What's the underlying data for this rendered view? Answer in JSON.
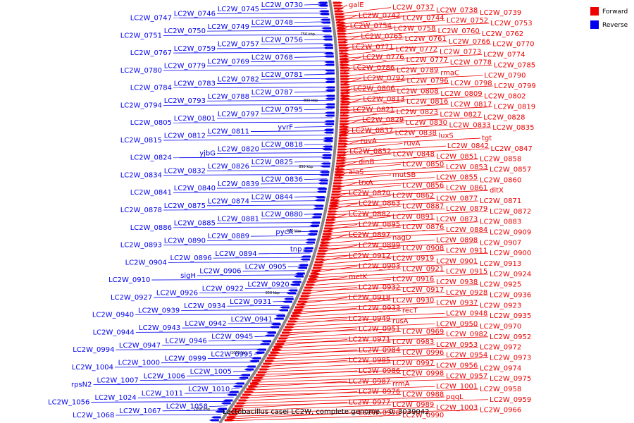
{
  "caption": "Lactobacillus casei LC2W, complete genome. - 0..3039042",
  "legend": [
    {
      "label": "Forward",
      "color": "#ee0000"
    },
    {
      "label": "Reverse",
      "color": "#0000ee"
    }
  ],
  "colors": {
    "forward": "#ee0000",
    "reverse": "#0000ee",
    "backbone": "#888888"
  },
  "kbp_marks": [
    "750 kbp",
    "800 kbp",
    "850 kbp",
    "900 kbp",
    "950 kbp",
    "1000 kbp",
    "1050 kbp"
  ],
  "reverse_labels": [
    "LC2W_0730",
    "LC2W_0745",
    "LC2W_0746",
    "LC2W_0747",
    "LC2W_0748",
    "LC2W_0749",
    "LC2W_0750",
    "LC2W_0751",
    "LC2W_0756",
    "LC2W_0757",
    "LC2W_0759",
    "LC2W_0767",
    "LC2W_0768",
    "LC2W_0769",
    "LC2W_0779",
    "LC2W_0780",
    "LC2W_0781",
    "LC2W_0782",
    "LC2W_0783",
    "LC2W_0784",
    "LC2W_0787",
    "LC2W_0788",
    "LC2W_0793",
    "LC2W_0794",
    "LC2W_0795",
    "LC2W_0797",
    "LC2W_0801",
    "LC2W_0805",
    "yvrF",
    "LC2W_0811",
    "LC2W_0812",
    "LC2W_0815",
    "LC2W_0818",
    "LC2W_0820",
    "yjbG",
    "LC2W_0824",
    "LC2W_0825",
    "LC2W_0826",
    "LC2W_0832",
    "LC2W_0834",
    "LC2W_0836",
    "LC2W_0839",
    "LC2W_0840",
    "LC2W_0841",
    "LC2W_0844",
    "LC2W_0874",
    "LC2W_0875",
    "LC2W_0878",
    "LC2W_0880",
    "LC2W_0881",
    "LC2W_0885",
    "LC2W_0886",
    "pycA",
    "LC2W_0889",
    "LC2W_0890",
    "LC2W_0893",
    "tnp",
    "LC2W_0894",
    "LC2W_0896",
    "LC2W_0904",
    "LC2W_0905",
    "LC2W_0906",
    "sigH",
    "LC2W_0910",
    "LC2W_0920",
    "LC2W_0922",
    "LC2W_0926",
    "LC2W_0927",
    "LC2W_0931",
    "LC2W_0934",
    "LC2W_0939",
    "LC2W_0940",
    "LC2W_0941",
    "LC2W_0942",
    "LC2W_0943",
    "LC2W_0944",
    "LC2W_0945",
    "LC2W_0946",
    "LC2W_0947",
    "LC2W_0994",
    "LC2W_0995",
    "LC2W_0999",
    "LC2W_1000",
    "LC2W_1004",
    "LC2W_1005",
    "LC2W_1006",
    "LC2W_1007",
    "rpsN2",
    "LC2W_1010",
    "LC2W_1011",
    "LC2W_1024",
    "LC2W_1056",
    "LC2W_1058",
    "LC2W_1067",
    "LC2W_1068"
  ],
  "forward_labels": [
    "galE",
    "LC2W_0737",
    "LC2W_0738",
    "LC2W_0739",
    "LC2W_0742",
    "LC2W_0744",
    "LC2W_0752",
    "LC2W_0753",
    "LC2W_0754",
    "LC2W_0758",
    "LC2W_0760",
    "LC2W_0762",
    "LC2W_0765",
    "LC2W_0761",
    "LC2W_0766",
    "LC2W_0770",
    "LC2W_0771",
    "LC2W_0772",
    "LC2W_0773",
    "LC2W_0774",
    "LC2W_0776",
    "LC2W_0777",
    "LC2W_0778",
    "LC2W_0785",
    "LC2W_0786",
    "LC2W_0789",
    "rmaC",
    "LC2W_0790",
    "LC2W_0792",
    "LC2W_0796",
    "LC2W_0798",
    "LC2W_0799",
    "LC2W_0806",
    "LC2W_0808",
    "LC2W_0809",
    "LC2W_0802",
    "LC2W_0813",
    "LC2W_0816",
    "LC2W_0817",
    "LC2W_0819",
    "LC2W_0821",
    "LC2W_0823",
    "LC2W_0827",
    "LC2W_0828",
    "LC2W_0829",
    "LC2W_0830",
    "LC2W_0833",
    "LC2W_0835",
    "LC2W_0837",
    "LC2W_0838",
    "luxS",
    "tgt",
    "ruvA",
    "ruvA",
    "LC2W_0842",
    "LC2W_0847",
    "LC2W_0852",
    "LC2W_0848",
    "LC2W_0851",
    "LC2W_0858",
    "dinB",
    "LC2W_0850",
    "LC2W_0853",
    "LC2W_0857",
    "alaS",
    "mutSB",
    "LC2W_0855",
    "LC2W_0860",
    "trxA",
    "LC2W_0856",
    "LC2W_0861",
    "dltX",
    "LC2W_0870",
    "LC2W_0862",
    "LC2W_0877",
    "LC2W_0871",
    "LC2W_0863",
    "LC2W_0887",
    "LC2W_0879",
    "LC2W_0872",
    "LC2W_0882",
    "LC2W_0891",
    "LC2W_0873",
    "LC2W_0883",
    "LC2W_0895",
    "LC2W_0876",
    "LC2W_0884",
    "LC2W_0909",
    "LC2W_0897",
    "nagD",
    "LC2W_0898",
    "LC2W_0907",
    "LC2W_0899",
    "LC2W_0908",
    "LC2W_0911",
    "LC2W_0900",
    "LC2W_0912",
    "LC2W_0919",
    "LC2W_0901",
    "LC2W_0913",
    "LC2W_0903",
    "LC2W_0921",
    "LC2W_0915",
    "LC2W_0924",
    "metK",
    "LC2W_0916",
    "LC2W_0938",
    "LC2W_0925",
    "LC2W_0932",
    "LC2W_0917",
    "LC2W_0928",
    "LC2W_0936",
    "LC2W_0918",
    "LC2W_0930",
    "LC2W_0937",
    "LC2W_0923",
    "LC2W_0933",
    "recT",
    "LC2W_0948",
    "LC2W_0935",
    "LC2W_0949",
    "rusA",
    "LC2W_0950",
    "LC2W_0970",
    "LC2W_0951",
    "LC2W_0969",
    "LC2W_0982",
    "LC2W_0952",
    "LC2W_0971",
    "LC2W_0983",
    "LC2W_0953",
    "LC2W_0972",
    "LC2W_0984",
    "LC2W_0996",
    "LC2W_0954",
    "LC2W_0973",
    "LC2W_0985",
    "LC2W_0997",
    "LC2W_0956",
    "LC2W_0974",
    "LC2W_0986",
    "LC2W_0998",
    "LC2W_0957",
    "LC2W_0975",
    "LC2W_0987",
    "rrmA",
    "LC2W_1001",
    "LC2W_0958",
    "LC2W_0976",
    "LC2W_0988",
    "pqqL",
    "LC2W_0959",
    "LC2W_0977",
    "LC2W_0989",
    "LC2W_1003",
    "LC2W_0966",
    "LC2W_0978",
    "LC2W_0990"
  ]
}
